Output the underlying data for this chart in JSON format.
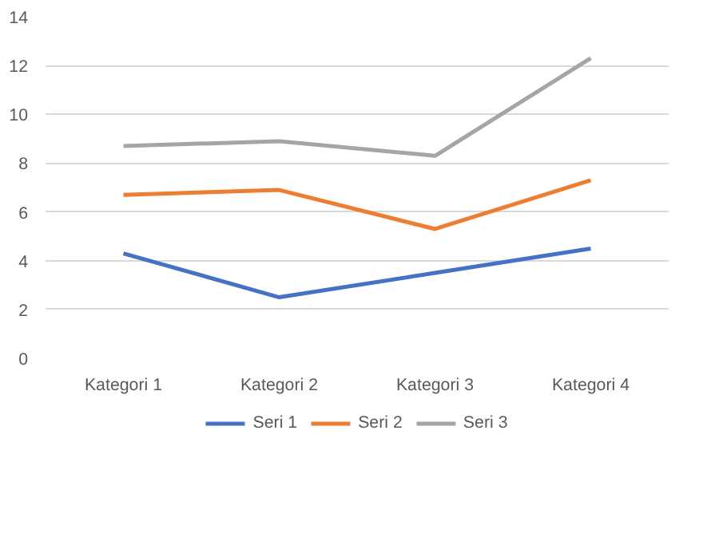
{
  "chart_data": {
    "type": "line",
    "categories": [
      "Kategori 1",
      "Kategori 2",
      "Kategori 3",
      "Kategori 4"
    ],
    "series": [
      {
        "name": "Seri 1",
        "color": "#4472c4",
        "values": [
          4.3,
          2.5,
          3.5,
          4.5
        ]
      },
      {
        "name": "Seri 2",
        "color": "#ed7d31",
        "values": [
          6.7,
          6.9,
          5.3,
          7.3
        ]
      },
      {
        "name": "Seri 3",
        "color": "#a5a5a5",
        "values": [
          8.7,
          8.9,
          8.3,
          12.3
        ]
      }
    ],
    "ylim": [
      0,
      14
    ],
    "yticks": [
      0,
      2,
      4,
      6,
      8,
      10,
      12,
      14
    ],
    "grid": "y",
    "legend": "bottom",
    "marker": "none",
    "line_style": "solid"
  }
}
